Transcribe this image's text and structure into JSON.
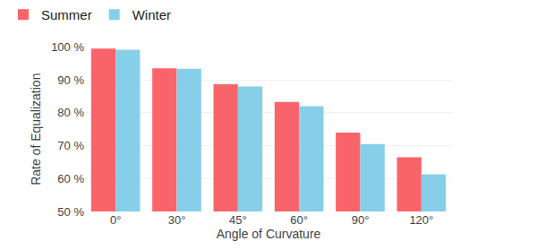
{
  "chart_data": {
    "type": "bar",
    "categories": [
      "0°",
      "30°",
      "45°",
      "60°",
      "90°",
      "120°"
    ],
    "series": [
      {
        "name": "Summer",
        "color": "#f9646a",
        "values": [
          99.5,
          93.5,
          88.7,
          83.3,
          74.0,
          66.5
        ]
      },
      {
        "name": "Winter",
        "color": "#87cfe8",
        "values": [
          99.2,
          93.4,
          88.0,
          82.0,
          70.5,
          61.3
        ]
      }
    ],
    "xlabel": "Angle of Curvature",
    "ylabel": "Rate of Equalization",
    "ylim": [
      50,
      100
    ],
    "yticks": [
      {
        "value": 50,
        "label": "50 %"
      },
      {
        "value": 60,
        "label": "60 %"
      },
      {
        "value": 70,
        "label": "70 %"
      },
      {
        "value": 80,
        "label": "80 %"
      },
      {
        "value": 90,
        "label": "90 %"
      },
      {
        "value": 100,
        "label": "100 %"
      }
    ],
    "grid": true,
    "legend": "top left"
  }
}
